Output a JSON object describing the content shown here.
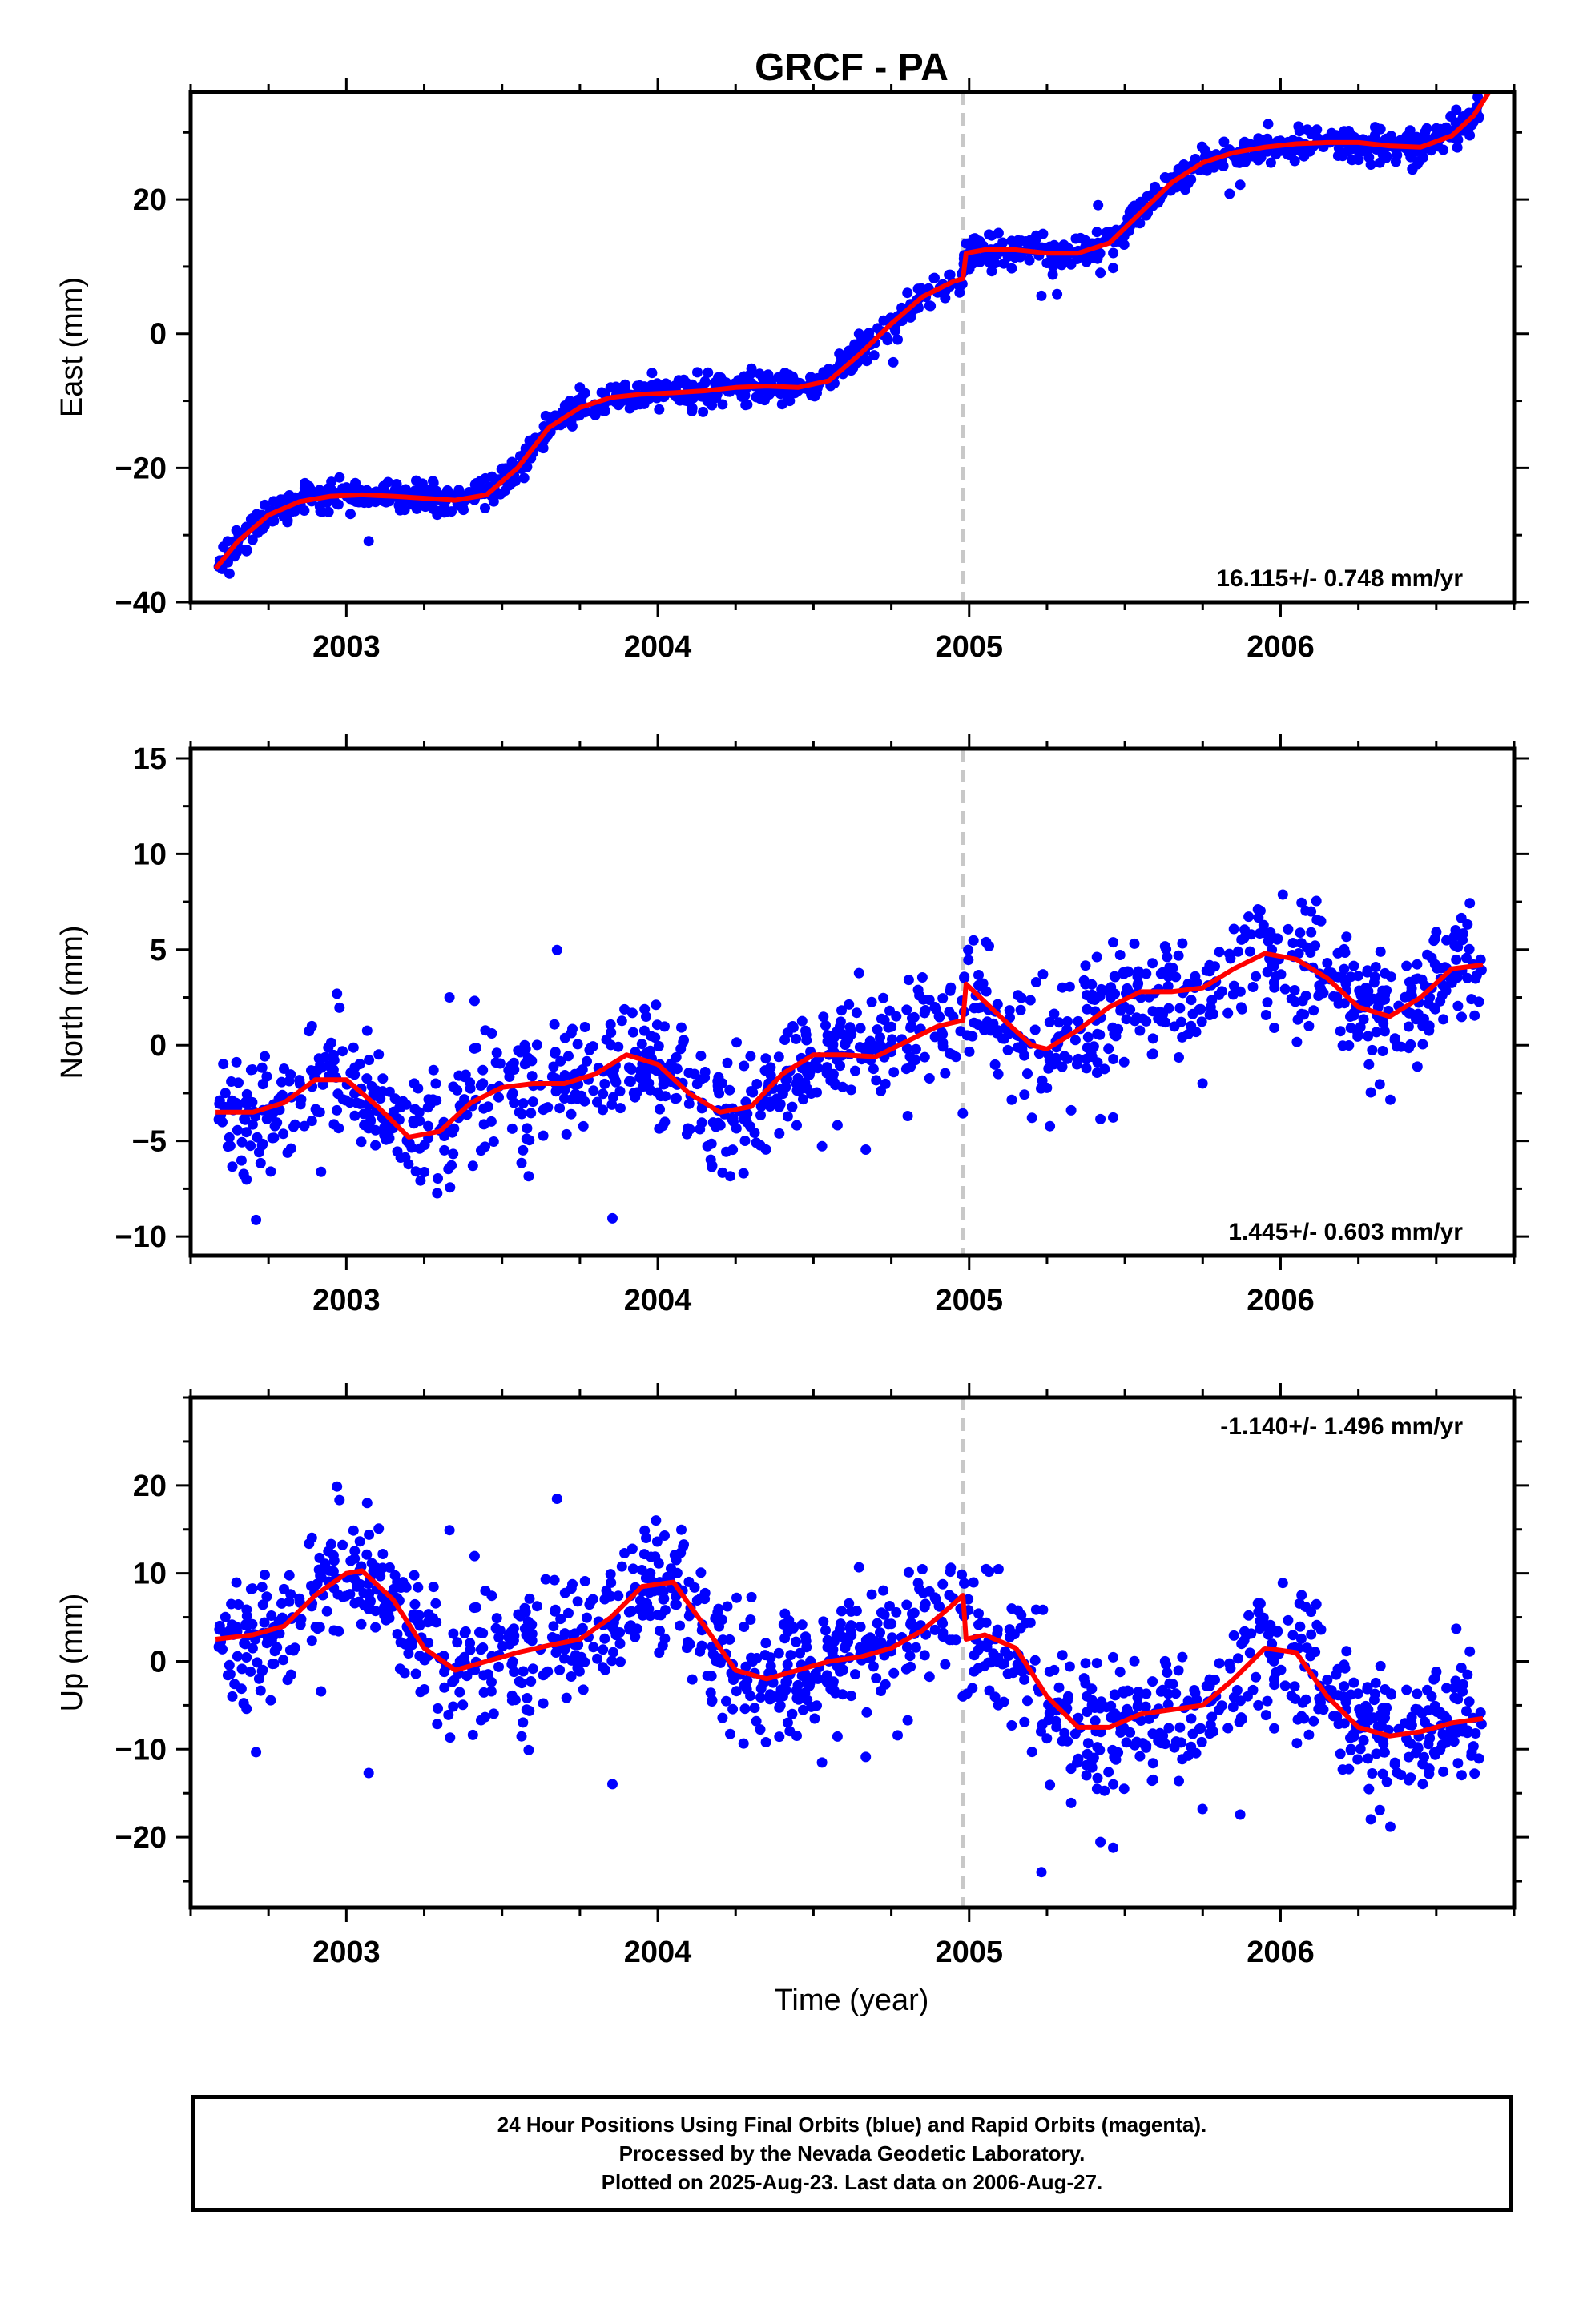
{
  "title": "GRCF - PA",
  "xlabel": "Time (year)",
  "footer": {
    "line1": "24 Hour Positions Using Final Orbits (blue) and Rapid Orbits (magenta).",
    "line2": "Processed by the Nevada Geodetic Laboratory.",
    "line3": "Plotted on 2025-Aug-23. Last data on 2006-Aug-27."
  },
  "colors": {
    "points": "#0000ff",
    "model": "#ff0000",
    "offset_line": "#c8c8c8",
    "frame": "#000000"
  },
  "chart_data": [
    {
      "type": "scatter",
      "panel": "east",
      "ylabel": "East (mm)",
      "xlim": [
        2002.5,
        2006.75
      ],
      "ylim": [
        -40,
        36
      ],
      "yticks": [
        -40,
        -20,
        0,
        20
      ],
      "xticks": [
        2003,
        2004,
        2005,
        2006
      ],
      "rate_label": "16.115+/- 0.748 mm/yr",
      "rate_position": "bottom-right",
      "offset_epoch": 2004.98,
      "series": [
        {
          "name": "model",
          "kind": "line",
          "x": [
            2002.58,
            2002.65,
            2002.75,
            2002.85,
            2002.95,
            2003.05,
            2003.15,
            2003.25,
            2003.35,
            2003.45,
            2003.55,
            2003.65,
            2003.75,
            2003.85,
            2003.95,
            2004.05,
            2004.15,
            2004.25,
            2004.35,
            2004.45,
            2004.55,
            2004.65,
            2004.75,
            2004.85,
            2004.95,
            2004.98,
            2004.99,
            2005.05,
            2005.15,
            2005.25,
            2005.35,
            2005.45,
            2005.55,
            2005.65,
            2005.75,
            2005.85,
            2005.95,
            2006.05,
            2006.15,
            2006.25,
            2006.35,
            2006.45,
            2006.55,
            2006.62,
            2006.67
          ],
          "y": [
            -35,
            -31,
            -27,
            -25,
            -24.2,
            -24,
            -24.2,
            -24.5,
            -24.8,
            -24,
            -20,
            -14,
            -11,
            -9.5,
            -9,
            -8.8,
            -8.5,
            -8.0,
            -7.8,
            -8.0,
            -7.0,
            -3,
            1.5,
            5.5,
            7.8,
            8.2,
            12,
            12.5,
            12.5,
            12.0,
            12.0,
            13.5,
            18,
            22.5,
            25.5,
            27,
            27.8,
            28.3,
            28.5,
            28.5,
            28.0,
            27.8,
            29.5,
            32.5,
            36
          ]
        },
        {
          "name": "data",
          "kind": "points",
          "n": 1250,
          "noise": 1.6
        }
      ]
    },
    {
      "type": "scatter",
      "panel": "north",
      "ylabel": "North (mm)",
      "xlim": [
        2002.5,
        2006.75
      ],
      "ylim": [
        -11,
        15.5
      ],
      "yticks": [
        -10,
        -5,
        0,
        5,
        10,
        15
      ],
      "xticks": [
        2003,
        2004,
        2005,
        2006
      ],
      "rate_label": "1.445+/- 0.603 mm/yr",
      "rate_position": "bottom-right",
      "offset_epoch": 2004.98,
      "series": [
        {
          "name": "model",
          "kind": "line",
          "x": [
            2002.58,
            2002.7,
            2002.8,
            2002.9,
            2003.0,
            2003.1,
            2003.2,
            2003.3,
            2003.4,
            2003.5,
            2003.6,
            2003.7,
            2003.8,
            2003.9,
            2004.0,
            2004.1,
            2004.2,
            2004.3,
            2004.4,
            2004.5,
            2004.6,
            2004.7,
            2004.8,
            2004.9,
            2004.98,
            2004.99,
            2005.1,
            2005.2,
            2005.25,
            2005.35,
            2005.45,
            2005.55,
            2005.65,
            2005.75,
            2005.85,
            2005.95,
            2006.05,
            2006.15,
            2006.25,
            2006.35,
            2006.45,
            2006.55,
            2006.65
          ],
          "y": [
            -3.5,
            -3.5,
            -3.0,
            -1.8,
            -1.8,
            -3.2,
            -4.8,
            -4.5,
            -3.0,
            -2.2,
            -2.0,
            -2.0,
            -1.5,
            -0.5,
            -1.0,
            -2.5,
            -3.5,
            -3.2,
            -1.5,
            -0.5,
            -0.5,
            -0.6,
            0.2,
            1.0,
            1.3,
            3.2,
            1.5,
            0.0,
            -0.2,
            0.8,
            2.0,
            2.8,
            2.8,
            3.0,
            4.0,
            4.8,
            4.5,
            3.5,
            2.0,
            1.5,
            2.5,
            4.0,
            4.2
          ]
        },
        {
          "name": "data",
          "kind": "points",
          "n": 1150,
          "noise": 2.2
        }
      ]
    },
    {
      "type": "scatter",
      "panel": "up",
      "ylabel": "Up (mm)",
      "xlim": [
        2002.5,
        2006.75
      ],
      "ylim": [
        -28,
        30
      ],
      "yticks": [
        -20,
        -10,
        0,
        10,
        20
      ],
      "xticks": [
        2003,
        2004,
        2005,
        2006
      ],
      "rate_label": "-1.140+/- 1.496 mm/yr",
      "rate_position": "top-right",
      "offset_epoch": 2004.98,
      "series": [
        {
          "name": "model",
          "kind": "line",
          "x": [
            2002.58,
            2002.7,
            2002.8,
            2002.9,
            2003.0,
            2003.05,
            2003.15,
            2003.25,
            2003.35,
            2003.45,
            2003.55,
            2003.65,
            2003.75,
            2003.85,
            2003.95,
            2004.05,
            2004.15,
            2004.25,
            2004.35,
            2004.45,
            2004.55,
            2004.65,
            2004.75,
            2004.85,
            2004.95,
            2004.98,
            2004.99,
            2005.05,
            2005.15,
            2005.25,
            2005.35,
            2005.45,
            2005.55,
            2005.65,
            2005.75,
            2005.85,
            2005.95,
            2006.05,
            2006.15,
            2006.25,
            2006.35,
            2006.45,
            2006.55,
            2006.65
          ],
          "y": [
            2.5,
            3.0,
            4.0,
            7.5,
            10.0,
            10.3,
            7.0,
            1.5,
            -1.0,
            0.0,
            1.0,
            1.8,
            2.5,
            5.0,
            8.5,
            9.0,
            4.0,
            -1.0,
            -2.0,
            -1.0,
            0.0,
            0.5,
            1.5,
            3.5,
            6.5,
            7.5,
            2.5,
            3.0,
            1.5,
            -4.0,
            -7.5,
            -7.5,
            -6.0,
            -5.5,
            -5.0,
            -2.0,
            1.5,
            1.0,
            -4.0,
            -7.5,
            -8.5,
            -8.0,
            -7.0,
            -6.5
          ]
        },
        {
          "name": "data",
          "kind": "points",
          "n": 1250,
          "noise": 5.2
        }
      ]
    }
  ]
}
